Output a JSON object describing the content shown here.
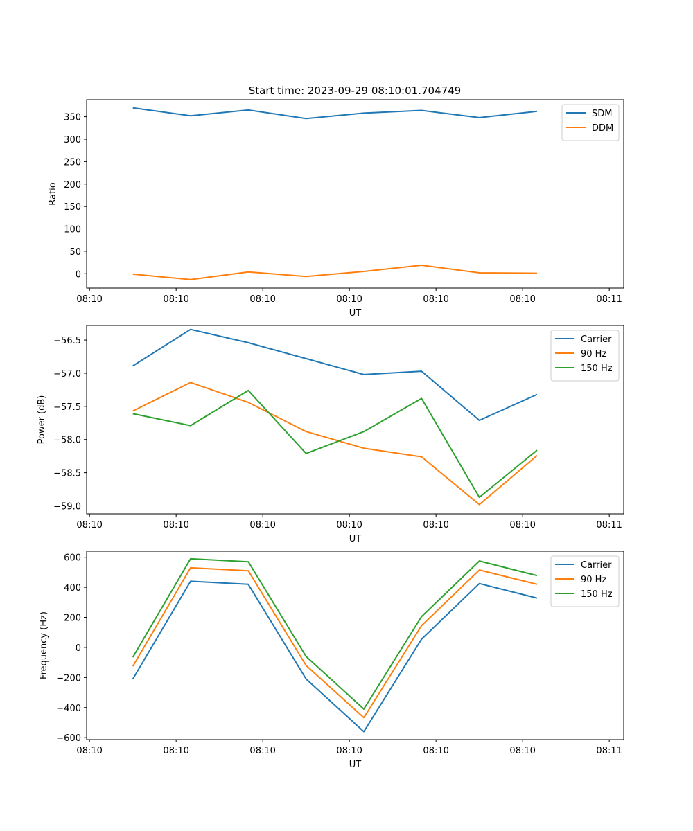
{
  "figure": {
    "title": "Start time: 2023-09-29 08:10:01.704749"
  },
  "chart_data": [
    {
      "type": "line",
      "title": "Start time: 2023-09-29 08:10:01.704749",
      "xlabel": "UT",
      "ylabel": "Ratio",
      "xlim": [
        -0.8,
        8.5
      ],
      "ylim": [
        -32,
        388
      ],
      "x": [
        0,
        1,
        2,
        3,
        4,
        5,
        6,
        7
      ],
      "x_tick_values": [
        -0.75,
        0.75,
        2.25,
        3.75,
        5.25,
        6.75,
        8.25
      ],
      "x_tick_labels": [
        "08:10",
        "08:10",
        "08:10",
        "08:10",
        "08:10",
        "08:10",
        "08:11"
      ],
      "y_ticks": [
        0,
        50,
        100,
        150,
        200,
        250,
        300,
        350
      ],
      "legend_position": "top-right",
      "series": [
        {
          "name": "SDM",
          "color": "#1f77b4",
          "values": [
            370,
            352,
            365,
            346,
            358,
            364,
            348,
            362
          ]
        },
        {
          "name": "DDM",
          "color": "#ff7f0e",
          "values": [
            -1,
            -13,
            4,
            -6,
            5,
            19,
            2,
            1
          ]
        }
      ]
    },
    {
      "type": "line",
      "title": "",
      "xlabel": "UT",
      "ylabel": "Power (dB)",
      "xlim": [
        -0.8,
        8.5
      ],
      "ylim": [
        -59.12,
        -56.28
      ],
      "x": [
        0,
        1,
        2,
        3,
        4,
        5,
        6,
        7
      ],
      "x_tick_values": [
        -0.75,
        0.75,
        2.25,
        3.75,
        5.25,
        6.75,
        8.25
      ],
      "x_tick_labels": [
        "08:10",
        "08:10",
        "08:10",
        "08:10",
        "08:10",
        "08:10",
        "08:11"
      ],
      "y_ticks": [
        -59.0,
        -58.5,
        -58.0,
        -57.5,
        -57.0,
        -56.5
      ],
      "y_tick_labels": [
        "−59.0",
        "−58.5",
        "−58.0",
        "−57.5",
        "−57.0",
        "−56.5"
      ],
      "legend_position": "top-right",
      "series": [
        {
          "name": "Carrier",
          "color": "#1f77b4",
          "values": [
            -56.89,
            -56.34,
            -56.54,
            -56.78,
            -57.02,
            -56.97,
            -57.71,
            -57.32
          ]
        },
        {
          "name": "90 Hz",
          "color": "#ff7f0e",
          "values": [
            -57.57,
            -57.14,
            -57.44,
            -57.88,
            -58.13,
            -58.26,
            -58.98,
            -58.24
          ]
        },
        {
          "name": "150 Hz",
          "color": "#2ca02c",
          "values": [
            -57.61,
            -57.79,
            -57.26,
            -58.21,
            -57.88,
            -57.38,
            -58.87,
            -58.16
          ]
        }
      ]
    },
    {
      "type": "line",
      "title": "",
      "xlabel": "UT",
      "ylabel": "Frequency (Hz)",
      "xlim": [
        -0.8,
        8.5
      ],
      "ylim": [
        -613,
        640
      ],
      "x": [
        0,
        1,
        2,
        3,
        4,
        5,
        6,
        7
      ],
      "x_tick_values": [
        -0.75,
        0.75,
        2.25,
        3.75,
        5.25,
        6.75,
        8.25
      ],
      "x_tick_labels": [
        "08:10",
        "08:10",
        "08:10",
        "08:10",
        "08:10",
        "08:10",
        "08:11"
      ],
      "y_ticks": [
        -600,
        -400,
        -200,
        0,
        200,
        400,
        600
      ],
      "y_tick_labels": [
        "−600",
        "−400",
        "−200",
        "0",
        "200",
        "400",
        "600"
      ],
      "legend_position": "top-right",
      "series": [
        {
          "name": "Carrier",
          "color": "#1f77b4",
          "values": [
            -210,
            440,
            420,
            -210,
            -560,
            55,
            425,
            328
          ]
        },
        {
          "name": "90 Hz",
          "color": "#ff7f0e",
          "values": [
            -125,
            530,
            510,
            -120,
            -467,
            145,
            515,
            420
          ]
        },
        {
          "name": "150 Hz",
          "color": "#2ca02c",
          "values": [
            -65,
            590,
            570,
            -60,
            -410,
            205,
            575,
            478
          ]
        }
      ]
    }
  ]
}
